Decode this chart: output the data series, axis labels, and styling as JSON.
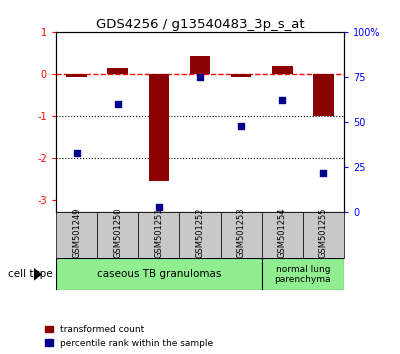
{
  "title": "GDS4256 / g13540483_3p_s_at",
  "samples": [
    "GSM501249",
    "GSM501250",
    "GSM501251",
    "GSM501252",
    "GSM501253",
    "GSM501254",
    "GSM501255"
  ],
  "red_values": [
    -0.07,
    0.15,
    -2.55,
    0.42,
    -0.07,
    0.18,
    -1.0
  ],
  "blue_percentiles": [
    33,
    60,
    3,
    75,
    48,
    62,
    22
  ],
  "ylim_left": [
    -3.3,
    1.0
  ],
  "ylim_right": [
    0,
    100
  ],
  "yticks_left": [
    1,
    0,
    -1,
    -2,
    -3
  ],
  "ytick_labels_left": [
    "1",
    "0",
    "-1",
    "-2",
    "-3"
  ],
  "yticks_right": [
    100,
    75,
    50,
    25,
    0
  ],
  "ytick_labels_right": [
    "100%",
    "75",
    "50",
    "25",
    "0"
  ],
  "dotted_lines": [
    -1,
    -2
  ],
  "bar_color": "#8B0000",
  "dot_color": "#00008B",
  "legend_red_label": "transformed count",
  "legend_blue_label": "percentile rank within the sample",
  "cell_type_label": "cell type",
  "sample_box_color": "#C8C8C8",
  "group1_label": "caseous TB granulomas",
  "group1_count": 5,
  "group2_label": "normal lung\nparenchyma",
  "group2_count": 2,
  "group_color": "#90EE90"
}
